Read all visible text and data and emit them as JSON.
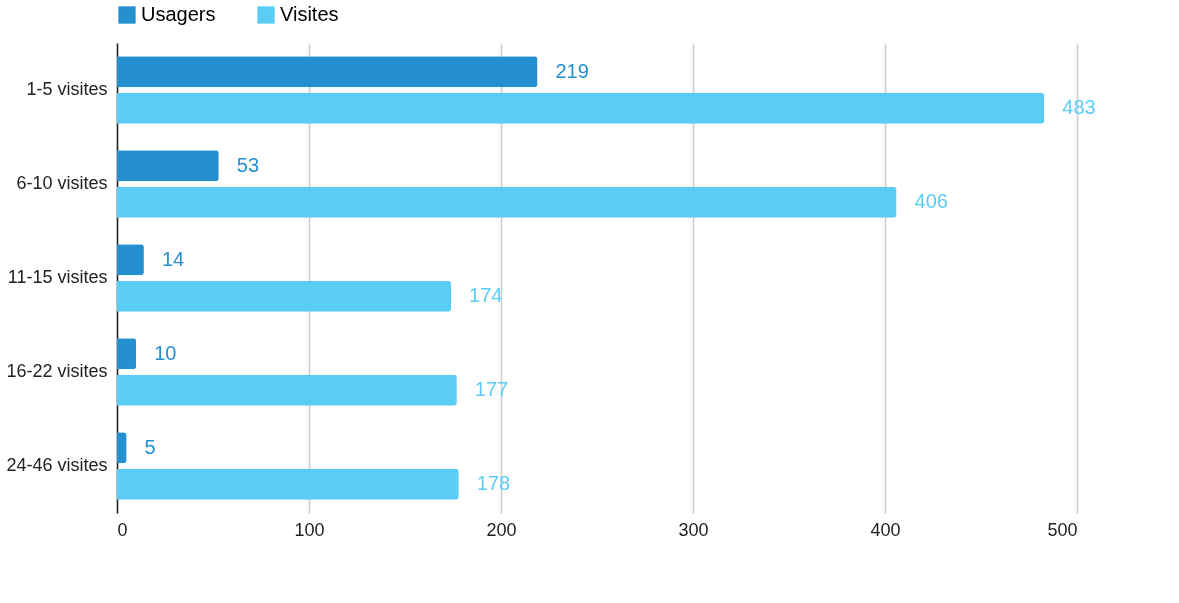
{
  "chart_data": {
    "type": "bar",
    "orientation": "horizontal",
    "categories": [
      "1-5 visites",
      "6-10 visites",
      "11-15 visites",
      "16-22 visites",
      "24-46 visites"
    ],
    "series": [
      {
        "name": "Usagers",
        "color": "#2590d0",
        "values": [
          219,
          53,
          14,
          10,
          5
        ]
      },
      {
        "name": "Visites",
        "color": "#5bcdf5",
        "values": [
          483,
          406,
          174,
          177,
          178
        ]
      }
    ],
    "xlim": [
      0,
      500
    ],
    "xticks": [
      0,
      100,
      200,
      300,
      400,
      500
    ],
    "grid": "x",
    "legend": "top",
    "data_labels": true
  }
}
